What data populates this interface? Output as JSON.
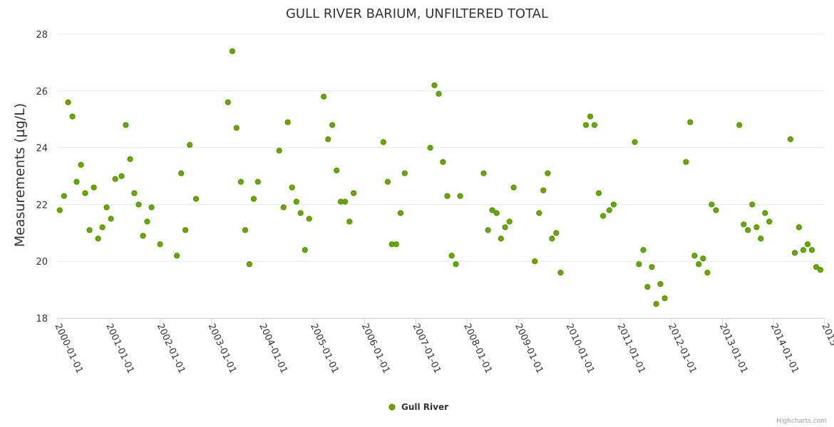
{
  "chart_data": {
    "type": "scatter",
    "title": "GULL RIVER BARIUM, UNFILTERED TOTAL",
    "ylabel": "Measurements (µg/L)",
    "xlabel": "",
    "ylim": [
      18,
      28
    ],
    "yticks": [
      18,
      20,
      22,
      24,
      26,
      28
    ],
    "xlim": [
      "2000-01-01",
      "2015-01-01"
    ],
    "xticks": [
      "2000-01-01",
      "2001-01-01",
      "2002-01-01",
      "2003-01-01",
      "2004-01-01",
      "2005-01-01",
      "2006-01-01",
      "2007-01-01",
      "2008-01-01",
      "2009-01-01",
      "2010-01-01",
      "2011-01-01",
      "2012-01-01",
      "2013-01-01",
      "2014-01-01",
      "2015-01-01"
    ],
    "xtick_labels": [
      "2000-01-01",
      "2001-01-01",
      "2002-01-01",
      "2003-01-01",
      "2004-01-01",
      "2005-01-01",
      "2006-01-01",
      "2007-01-01",
      "2008-01-01",
      "2009-01-01",
      "2010-01-01",
      "2011-01-01",
      "2012-01-01",
      "2013-01-01",
      "2014-01-01",
      "2015"
    ],
    "grid": true,
    "legend": "bottom-center",
    "series": [
      {
        "name": "Gull River",
        "color": "#66aa00",
        "points": [
          [
            "2000-01-15",
            21.8
          ],
          [
            "2000-02-15",
            22.3
          ],
          [
            "2000-03-15",
            25.6
          ],
          [
            "2000-04-15",
            25.1
          ],
          [
            "2000-05-15",
            22.8
          ],
          [
            "2000-06-15",
            23.4
          ],
          [
            "2000-07-15",
            22.4
          ],
          [
            "2000-08-15",
            21.1
          ],
          [
            "2000-09-15",
            22.6
          ],
          [
            "2000-10-15",
            20.8
          ],
          [
            "2000-11-15",
            21.2
          ],
          [
            "2000-12-15",
            21.9
          ],
          [
            "2001-01-15",
            21.5
          ],
          [
            "2001-02-15",
            22.9
          ],
          [
            "2001-04-01",
            23.0
          ],
          [
            "2001-05-01",
            24.8
          ],
          [
            "2001-06-01",
            23.6
          ],
          [
            "2001-07-01",
            22.4
          ],
          [
            "2001-08-01",
            22.0
          ],
          [
            "2001-09-01",
            20.9
          ],
          [
            "2001-10-01",
            21.4
          ],
          [
            "2001-11-01",
            21.9
          ],
          [
            "2002-01-01",
            20.6
          ],
          [
            "2002-05-01",
            20.2
          ],
          [
            "2002-06-01",
            23.1
          ],
          [
            "2002-07-01",
            21.1
          ],
          [
            "2002-08-01",
            24.1
          ],
          [
            "2002-09-15",
            22.2
          ],
          [
            "2003-05-01",
            25.6
          ],
          [
            "2003-06-01",
            27.4
          ],
          [
            "2003-07-01",
            24.7
          ],
          [
            "2003-08-01",
            22.8
          ],
          [
            "2003-09-01",
            21.1
          ],
          [
            "2003-10-01",
            19.9
          ],
          [
            "2003-11-01",
            22.2
          ],
          [
            "2003-12-01",
            22.8
          ],
          [
            "2004-05-01",
            23.9
          ],
          [
            "2004-06-01",
            21.9
          ],
          [
            "2004-07-01",
            24.9
          ],
          [
            "2004-08-01",
            22.6
          ],
          [
            "2004-09-01",
            22.1
          ],
          [
            "2004-10-01",
            21.7
          ],
          [
            "2004-11-01",
            20.4
          ],
          [
            "2004-12-01",
            21.5
          ],
          [
            "2005-03-15",
            25.8
          ],
          [
            "2005-04-15",
            24.3
          ],
          [
            "2005-05-15",
            24.8
          ],
          [
            "2005-06-15",
            23.2
          ],
          [
            "2005-07-15",
            22.1
          ],
          [
            "2005-08-15",
            22.1
          ],
          [
            "2005-09-15",
            21.4
          ],
          [
            "2005-10-15",
            22.4
          ],
          [
            "2006-05-15",
            24.2
          ],
          [
            "2006-06-15",
            22.8
          ],
          [
            "2006-07-15",
            20.6
          ],
          [
            "2006-08-15",
            20.6
          ],
          [
            "2006-09-15",
            21.7
          ],
          [
            "2006-10-15",
            23.1
          ],
          [
            "2007-04-15",
            24.0
          ],
          [
            "2007-05-15",
            26.2
          ],
          [
            "2007-06-15",
            25.9
          ],
          [
            "2007-07-15",
            23.5
          ],
          [
            "2007-08-15",
            22.3
          ],
          [
            "2007-09-15",
            20.2
          ],
          [
            "2007-10-15",
            19.9
          ],
          [
            "2007-11-15",
            22.3
          ],
          [
            "2008-05-01",
            23.1
          ],
          [
            "2008-06-01",
            21.1
          ],
          [
            "2008-07-01",
            21.8
          ],
          [
            "2008-08-01",
            21.7
          ],
          [
            "2008-09-01",
            20.8
          ],
          [
            "2008-10-01",
            21.2
          ],
          [
            "2008-11-01",
            21.4
          ],
          [
            "2008-12-01",
            22.6
          ],
          [
            "2009-05-01",
            20.0
          ],
          [
            "2009-06-01",
            21.7
          ],
          [
            "2009-07-01",
            22.5
          ],
          [
            "2009-08-01",
            23.1
          ],
          [
            "2009-09-01",
            20.8
          ],
          [
            "2009-10-01",
            21.0
          ],
          [
            "2009-11-01",
            19.6
          ],
          [
            "2010-05-01",
            24.8
          ],
          [
            "2010-06-01",
            25.1
          ],
          [
            "2010-07-01",
            24.8
          ],
          [
            "2010-08-01",
            22.4
          ],
          [
            "2010-09-01",
            21.6
          ],
          [
            "2010-10-15",
            21.8
          ],
          [
            "2010-11-15",
            22.0
          ],
          [
            "2011-04-15",
            24.2
          ],
          [
            "2011-05-15",
            19.9
          ],
          [
            "2011-06-15",
            20.4
          ],
          [
            "2011-07-15",
            19.1
          ],
          [
            "2011-08-15",
            19.8
          ],
          [
            "2011-09-15",
            18.5
          ],
          [
            "2011-10-15",
            19.2
          ],
          [
            "2011-11-15",
            18.7
          ],
          [
            "2012-04-15",
            23.5
          ],
          [
            "2012-05-15",
            24.9
          ],
          [
            "2012-06-15",
            20.2
          ],
          [
            "2012-07-15",
            19.9
          ],
          [
            "2012-08-15",
            20.1
          ],
          [
            "2012-09-15",
            19.6
          ],
          [
            "2012-10-15",
            22.0
          ],
          [
            "2012-11-15",
            21.8
          ],
          [
            "2013-05-01",
            24.8
          ],
          [
            "2013-06-01",
            21.3
          ],
          [
            "2013-07-01",
            21.1
          ],
          [
            "2013-08-01",
            22.0
          ],
          [
            "2013-09-01",
            21.2
          ],
          [
            "2013-10-01",
            20.8
          ],
          [
            "2013-11-01",
            21.7
          ],
          [
            "2013-12-01",
            21.4
          ],
          [
            "2014-05-01",
            24.3
          ],
          [
            "2014-06-01",
            20.3
          ],
          [
            "2014-07-01",
            21.2
          ],
          [
            "2014-08-01",
            20.4
          ],
          [
            "2014-09-01",
            20.6
          ],
          [
            "2014-10-01",
            20.4
          ],
          [
            "2014-11-01",
            19.8
          ],
          [
            "2014-12-01",
            19.7
          ]
        ]
      }
    ]
  },
  "credits": "Highcharts.com"
}
